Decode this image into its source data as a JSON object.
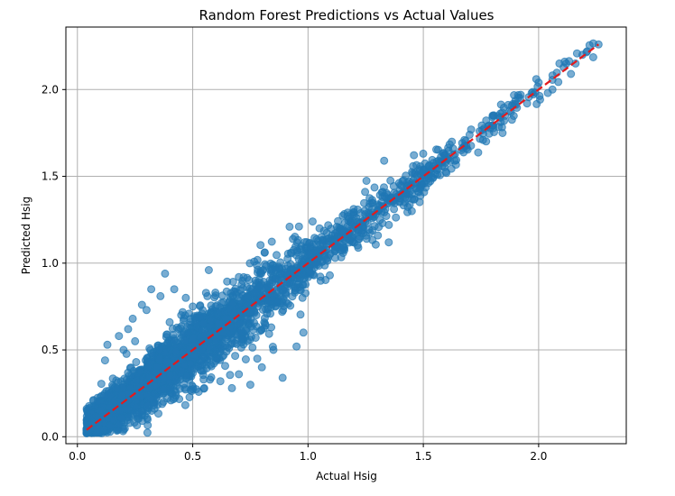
{
  "chart_data": {
    "type": "scatter",
    "title": "Random Forest Predictions vs Actual Values",
    "xlabel": "Actual Hsig",
    "ylabel": "Predicted Hsig",
    "xlim": [
      -0.05,
      2.38
    ],
    "ylim": [
      -0.04,
      2.36
    ],
    "xticks": [
      0.0,
      0.5,
      1.0,
      1.5,
      2.0
    ],
    "yticks": [
      0.0,
      0.5,
      1.0,
      1.5,
      2.0
    ],
    "xtick_labels": [
      "0.0",
      "0.5",
      "1.0",
      "1.5",
      "2.0"
    ],
    "ytick_labels": [
      "0.0",
      "0.5",
      "1.0",
      "1.5",
      "2.0"
    ],
    "grid": true,
    "point_color": "#1f77b4",
    "reference_line": {
      "x": [
        0.04,
        2.26
      ],
      "y": [
        0.04,
        2.26
      ],
      "color": "#e31a1c",
      "style": "dashed"
    },
    "point_count_estimate": 3000,
    "outliers": [
      {
        "x": 0.38,
        "y": 0.94
      },
      {
        "x": 0.32,
        "y": 0.85
      },
      {
        "x": 0.42,
        "y": 0.85
      },
      {
        "x": 0.36,
        "y": 0.81
      },
      {
        "x": 0.28,
        "y": 0.76
      },
      {
        "x": 0.3,
        "y": 0.73
      },
      {
        "x": 0.57,
        "y": 0.96
      },
      {
        "x": 0.7,
        "y": 0.92
      },
      {
        "x": 0.13,
        "y": 0.53
      },
      {
        "x": 0.18,
        "y": 0.58
      },
      {
        "x": 0.22,
        "y": 0.62
      },
      {
        "x": 0.25,
        "y": 0.55
      },
      {
        "x": 0.47,
        "y": 0.8
      },
      {
        "x": 0.45,
        "y": 0.7
      },
      {
        "x": 0.4,
        "y": 0.66
      },
      {
        "x": 1.33,
        "y": 1.59
      },
      {
        "x": 1.02,
        "y": 1.24
      },
      {
        "x": 0.92,
        "y": 1.21
      },
      {
        "x": 0.85,
        "y": 0.5
      },
      {
        "x": 0.8,
        "y": 0.4
      },
      {
        "x": 0.89,
        "y": 0.34
      },
      {
        "x": 0.75,
        "y": 0.3
      },
      {
        "x": 0.67,
        "y": 0.28
      },
      {
        "x": 0.7,
        "y": 0.36
      },
      {
        "x": 0.62,
        "y": 0.32
      },
      {
        "x": 0.55,
        "y": 0.28
      },
      {
        "x": 0.78,
        "y": 0.45
      },
      {
        "x": 0.95,
        "y": 0.52
      },
      {
        "x": 0.98,
        "y": 0.6
      },
      {
        "x": 1.35,
        "y": 1.12
      },
      {
        "x": 1.45,
        "y": 1.3
      },
      {
        "x": 1.6,
        "y": 1.52
      },
      {
        "x": 1.85,
        "y": 1.82
      },
      {
        "x": 1.92,
        "y": 1.95
      },
      {
        "x": 1.99,
        "y": 2.06
      },
      {
        "x": 2.0,
        "y": 2.04
      },
      {
        "x": 2.04,
        "y": 1.98
      },
      {
        "x": 2.06,
        "y": 2.0
      },
      {
        "x": 2.09,
        "y": 2.15
      },
      {
        "x": 2.14,
        "y": 2.09
      },
      {
        "x": 2.12,
        "y": 2.15
      },
      {
        "x": 2.16,
        "y": 2.15
      },
      {
        "x": 2.19,
        "y": 2.2
      },
      {
        "x": 2.21,
        "y": 2.22
      },
      {
        "x": 2.26,
        "y": 2.26
      },
      {
        "x": 1.97,
        "y": 1.98
      },
      {
        "x": 1.95,
        "y": 1.92
      },
      {
        "x": 1.88,
        "y": 1.87
      },
      {
        "x": 0.12,
        "y": 0.44
      },
      {
        "x": 0.2,
        "y": 0.5
      },
      {
        "x": 0.24,
        "y": 0.68
      },
      {
        "x": 0.5,
        "y": 0.75
      }
    ],
    "density_bands": [
      {
        "x_min": 0.04,
        "x_max": 0.3,
        "spread": 0.09,
        "count": 900
      },
      {
        "x_min": 0.3,
        "x_max": 0.6,
        "spread": 0.1,
        "count": 900
      },
      {
        "x_min": 0.6,
        "x_max": 1.0,
        "spread": 0.08,
        "count": 650
      },
      {
        "x_min": 1.0,
        "x_max": 1.5,
        "spread": 0.05,
        "count": 380
      },
      {
        "x_min": 1.5,
        "x_max": 1.9,
        "spread": 0.035,
        "count": 130
      },
      {
        "x_min": 1.9,
        "x_max": 2.26,
        "spread": 0.03,
        "count": 25
      }
    ]
  }
}
